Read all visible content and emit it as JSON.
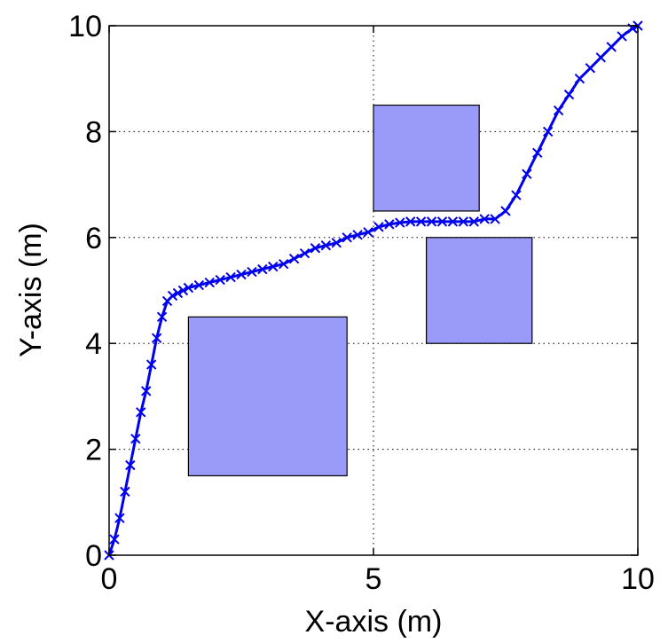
{
  "chart_data": {
    "type": "scatter",
    "xlabel": "X-axis (m)",
    "ylabel": "Y-axis (m)",
    "xlim": [
      0,
      10
    ],
    "ylim": [
      0,
      10
    ],
    "xticks": [
      0,
      5,
      10
    ],
    "yticks": [
      0,
      2,
      4,
      6,
      8,
      10
    ],
    "xtick_labels": [
      "0",
      "5",
      "10"
    ],
    "ytick_labels": [
      "0",
      "2",
      "4",
      "6",
      "8",
      "10"
    ],
    "grid": true,
    "grid_style": "dotted",
    "colors": {
      "path": "#0000ee",
      "obstacle_fill": "#9a9af8",
      "obstacle_stroke": "#000000"
    },
    "obstacles": [
      {
        "x0": 1.5,
        "y0": 1.5,
        "x1": 4.5,
        "y1": 4.5
      },
      {
        "x0": 5.0,
        "y0": 6.5,
        "x1": 7.0,
        "y1": 8.5
      },
      {
        "x0": 6.0,
        "y0": 4.0,
        "x1": 8.0,
        "y1": 6.0
      }
    ],
    "series": [
      {
        "marker": "x",
        "x": [
          0,
          0.1,
          0.2,
          0.3,
          0.4,
          0.5,
          0.6,
          0.7,
          0.8,
          0.9,
          1.0,
          1.1,
          1.2,
          1.3,
          1.4,
          1.5,
          1.7,
          1.9,
          2.1,
          2.3,
          2.5,
          2.7,
          2.9,
          3.1,
          3.3,
          3.5,
          3.7,
          3.9,
          4.1,
          4.3,
          4.5,
          4.7,
          4.9,
          5.1,
          5.3,
          5.5,
          5.7,
          5.9,
          6.1,
          6.3,
          6.5,
          6.7,
          6.9,
          7.1,
          7.3,
          7.5,
          7.7,
          7.9,
          8.1,
          8.3,
          8.5,
          8.7,
          8.9,
          9.1,
          9.3,
          9.5,
          9.7,
          9.9,
          10.0
        ],
        "y": [
          0,
          0.3,
          0.7,
          1.2,
          1.7,
          2.2,
          2.7,
          3.1,
          3.6,
          4.1,
          4.5,
          4.8,
          4.9,
          4.95,
          5.0,
          5.05,
          5.1,
          5.15,
          5.2,
          5.25,
          5.3,
          5.35,
          5.4,
          5.45,
          5.5,
          5.6,
          5.7,
          5.8,
          5.85,
          5.9,
          6.0,
          6.05,
          6.1,
          6.2,
          6.25,
          6.28,
          6.3,
          6.3,
          6.3,
          6.3,
          6.3,
          6.3,
          6.3,
          6.35,
          6.35,
          6.5,
          6.8,
          7.2,
          7.6,
          8.0,
          8.4,
          8.7,
          9.0,
          9.2,
          9.4,
          9.6,
          9.8,
          9.95,
          10.0
        ]
      }
    ]
  }
}
